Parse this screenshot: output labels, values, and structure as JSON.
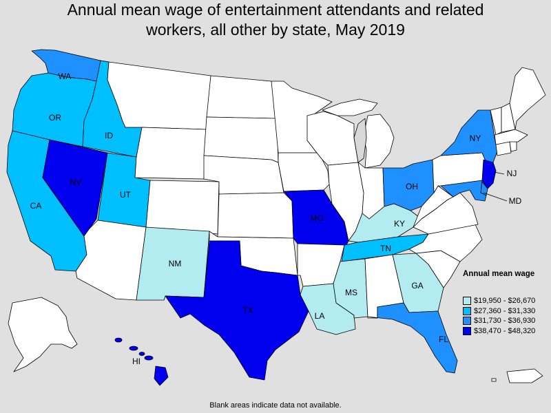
{
  "title_line1": "Annual mean wage of entertainment attendants and related",
  "title_line2": "workers, all other by state, May 2019",
  "colors": {
    "no_data": "#ffffff",
    "bin1": "#b2ecf0",
    "bin2": "#00bfff",
    "bin3": "#1e90ff",
    "bin4": "#0000ee",
    "background": "#e0e0e0"
  },
  "legend": {
    "title": "Annual mean wage",
    "bins": [
      {
        "label": "$19,950 - $26,670",
        "color": "#b2ecf0"
      },
      {
        "label": "$27,360 - $31,330",
        "color": "#00bfff"
      },
      {
        "label": "$31,730 - $36,930",
        "color": "#1e90ff"
      },
      {
        "label": "$38,470 - $48,320",
        "color": "#0000ee"
      }
    ]
  },
  "state_labels": {
    "WA": "WA",
    "OR": "OR",
    "CA": "CA",
    "ID": "ID",
    "NV": "NV",
    "UT": "UT",
    "NM": "NM",
    "TX": "TX",
    "MO": "MO",
    "LA": "LA",
    "MS": "MS",
    "TN": "TN",
    "KY": "KY",
    "GA": "GA",
    "FL": "FL",
    "OH": "OH",
    "NY": "NY",
    "NJ": "NJ",
    "MD": "MD",
    "HI": "HI"
  },
  "state_bins": {
    "WA": 3,
    "OR": 2,
    "CA": 2,
    "ID": 2,
    "NV": 4,
    "UT": 2,
    "NM": 1,
    "TX": 4,
    "MO": 4,
    "LA": 1,
    "MS": 1,
    "TN": 2,
    "KY": 1,
    "GA": 1,
    "FL": 3,
    "OH": 3,
    "NY": 3,
    "NJ": 4,
    "MD": 3,
    "DE": 3,
    "HI": 4
  },
  "footnote": "Blank areas indicate data not available."
}
